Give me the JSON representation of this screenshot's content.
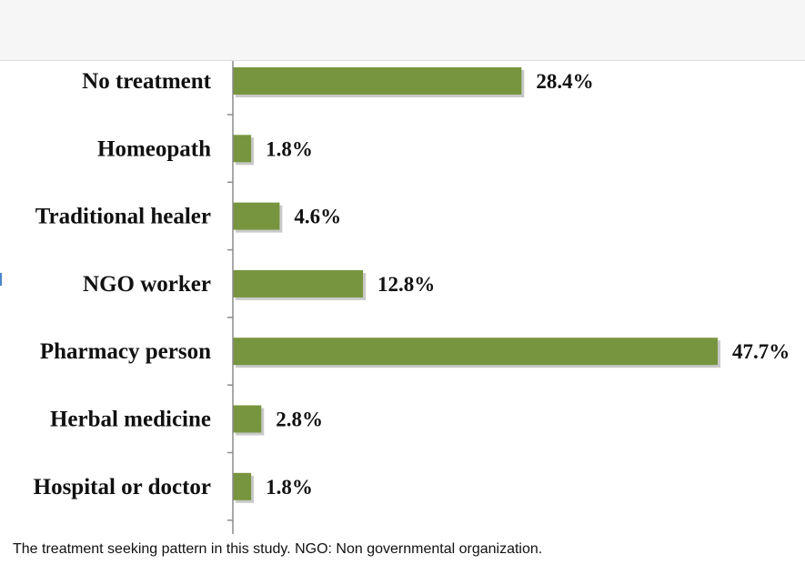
{
  "caption": "The treatment seeking pattern in this study. NGO: Non governmental organization.",
  "colors": {
    "bar": "#77953e",
    "bar_shadow": "#c9c9c9",
    "axis": "#8c8c8c"
  },
  "chart_data": {
    "type": "bar",
    "orientation": "horizontal",
    "categories": [
      "No treatment",
      "Homeopath",
      "Traditional healer",
      "NGO worker",
      "Pharmacy person",
      "Herbal medicine",
      "Hospital or doctor"
    ],
    "values": [
      28.4,
      1.8,
      4.6,
      12.8,
      47.7,
      2.8,
      1.8
    ],
    "value_labels": [
      "28.4%",
      "1.8%",
      "4.6%",
      "12.8%",
      "47.7%",
      "2.8%",
      "1.8%"
    ],
    "title": "",
    "xlabel": "",
    "ylabel": "",
    "xlim": [
      0,
      47.7
    ],
    "grid": false,
    "legend": "none"
  }
}
